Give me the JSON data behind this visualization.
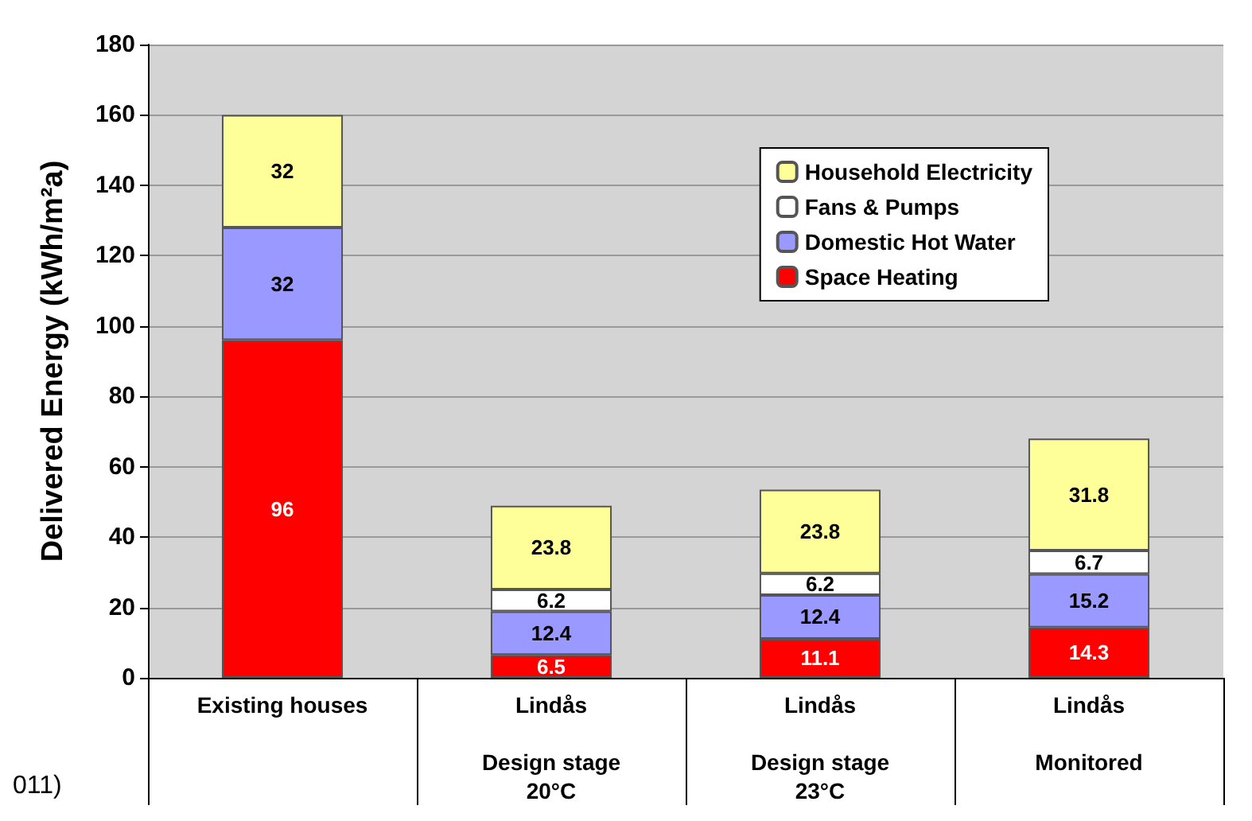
{
  "chart_data": {
    "type": "bar",
    "stacked": true,
    "ylabel": "Delivered Energy (kWh/m²a)",
    "categories": [
      "Existing houses",
      "Lindås\n\nDesign stage\n20°C",
      "Lindås\n\nDesign stage\n23°C",
      "Lindås\n\nMonitored"
    ],
    "series": [
      {
        "name": "Space Heating",
        "color": "#ff0000",
        "values": [
          96,
          6.5,
          11.1,
          14.3
        ],
        "value_labels": [
          "96",
          "6.5",
          "11.1",
          "14.3"
        ]
      },
      {
        "name": "Domestic Hot Water",
        "color": "#9999ff",
        "values": [
          32,
          12.4,
          12.4,
          15.2
        ],
        "value_labels": [
          "32",
          "12.4",
          "12.4",
          "15.2"
        ]
      },
      {
        "name": "Fans & Pumps",
        "color": "#ffffff",
        "values": [
          null,
          6.2,
          6.2,
          6.7
        ],
        "value_labels": [
          null,
          "6.2",
          "6.2",
          "6.7"
        ]
      },
      {
        "name": "Household Electricity",
        "color": "#ffff99",
        "values": [
          32,
          23.8,
          23.8,
          31.8
        ],
        "value_labels": [
          "32",
          "23.8",
          "23.8",
          "31.8"
        ]
      }
    ],
    "ylim": [
      0,
      180
    ],
    "yticks": [
      0,
      20,
      40,
      60,
      80,
      100,
      120,
      140,
      160,
      180
    ],
    "grid": "y",
    "legend": "top right",
    "annotations": [
      "011)"
    ]
  }
}
